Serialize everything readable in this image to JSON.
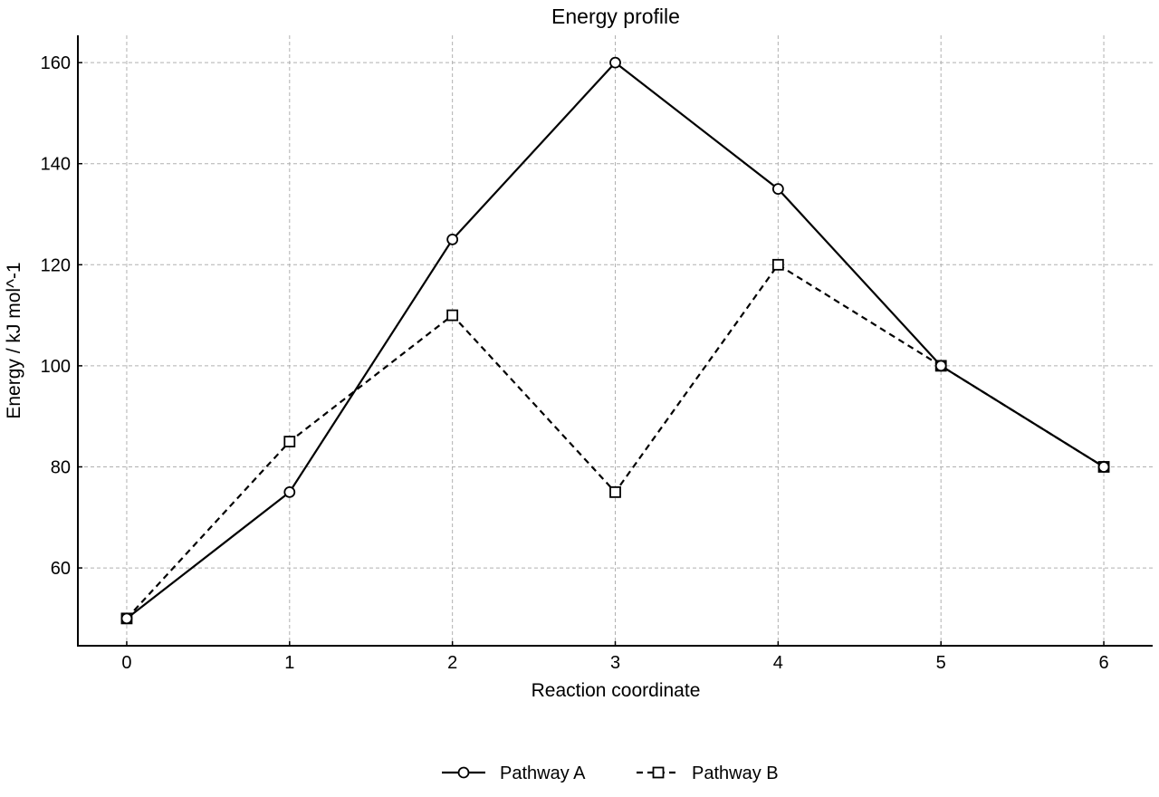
{
  "chart_data": {
    "type": "line",
    "title": "Energy profile",
    "xlabel": "Reaction coordinate",
    "ylabel": "Energy / kJ mol^-1",
    "x": [
      0,
      1,
      2,
      3,
      4,
      5,
      6
    ],
    "xlim": [
      -0.3,
      6.3
    ],
    "ylim": [
      44.6,
      165.4
    ],
    "xticks": [
      0,
      1,
      2,
      3,
      4,
      5,
      6
    ],
    "yticks": [
      60,
      80,
      100,
      120,
      140,
      160
    ],
    "grid": true,
    "legend_position": "bottom-center",
    "series": [
      {
        "name": "Pathway A",
        "values": [
          50,
          75,
          125,
          160,
          135,
          100,
          80
        ],
        "marker": "circle",
        "linestyle": "solid",
        "color": "#000000"
      },
      {
        "name": "Pathway B",
        "values": [
          50,
          85,
          110,
          75,
          120,
          100,
          80
        ],
        "marker": "square",
        "linestyle": "dashed",
        "color": "#000000"
      }
    ]
  }
}
